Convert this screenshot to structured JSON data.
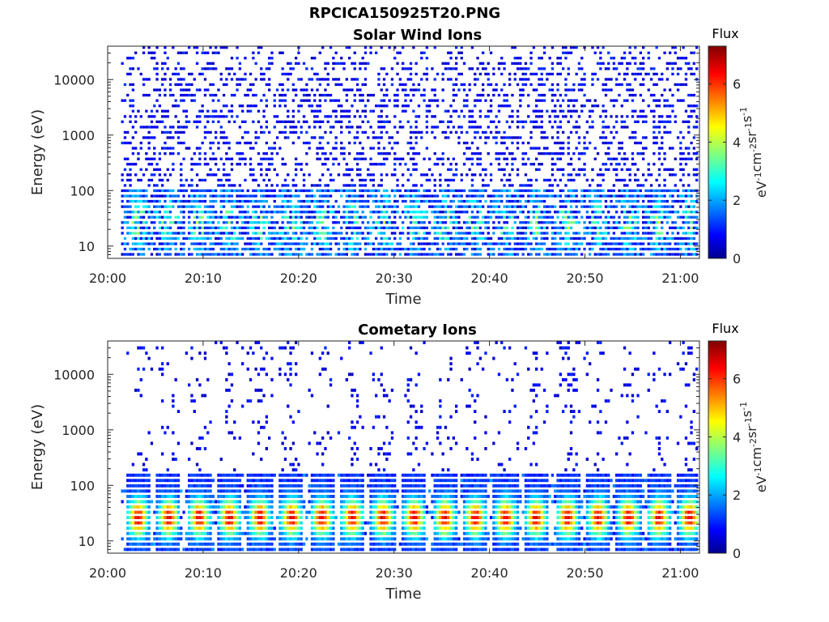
{
  "figure": {
    "title": "RPCICA150925T20.PNG"
  },
  "chart_data": [
    {
      "type": "heatmap",
      "title": "Solar Wind Ions",
      "xlabel": "Time",
      "ylabel": "Energy (eV)",
      "xticks": [
        "20:00",
        "20:10",
        "20:20",
        "20:30",
        "20:40",
        "20:50",
        "21:00"
      ],
      "xlim": [
        "20:00",
        "21:02"
      ],
      "ylim": [
        6,
        40000
      ],
      "yscale": "log",
      "yticks": [
        10,
        100,
        1000,
        10000
      ],
      "ytick_labels": [
        "10",
        "100",
        "1000",
        "10000"
      ],
      "colorbar": {
        "title": "Flux",
        "label": "eV-1cm-2sr-1s-1",
        "range": [
          0,
          7.3
        ],
        "ticks": [
          0,
          2,
          4,
          6
        ],
        "tick_labels": [
          "0",
          "2",
          "4",
          "6"
        ],
        "colormap": "jet"
      },
      "bursts_minutes": [
        3.2,
        6.4,
        9.6,
        12.8,
        16.0,
        19.3,
        22.5,
        25.7,
        28.9,
        32.2,
        35.4,
        38.6,
        41.8,
        45.0,
        48.3,
        51.5,
        54.7,
        57.9,
        61.1
      ],
      "background_level": 0.9,
      "burst_peak_level": 3.6,
      "burst_peak_energy_eV": 25
    },
    {
      "type": "heatmap",
      "title": "Cometary Ions",
      "xlabel": "Time",
      "ylabel": "Energy (eV)",
      "xticks": [
        "20:00",
        "20:10",
        "20:20",
        "20:30",
        "20:40",
        "20:50",
        "21:00"
      ],
      "xlim": [
        "20:00",
        "21:02"
      ],
      "ylim": [
        6,
        40000
      ],
      "yscale": "log",
      "yticks": [
        10,
        100,
        1000,
        10000
      ],
      "ytick_labels": [
        "10",
        "100",
        "1000",
        "10000"
      ],
      "colorbar": {
        "title": "Flux",
        "label": "eV-1cm-2sr-1s-1",
        "range": [
          0,
          7.3
        ],
        "ticks": [
          0,
          2,
          4,
          6
        ],
        "tick_labels": [
          "0",
          "2",
          "4",
          "6"
        ],
        "colormap": "jet"
      },
      "bursts_minutes": [
        3.2,
        6.4,
        9.6,
        12.8,
        16.0,
        19.3,
        22.5,
        25.7,
        28.9,
        32.2,
        35.4,
        38.6,
        41.8,
        45.0,
        48.3,
        51.5,
        54.7,
        57.9,
        61.1
      ],
      "background_level": 0.4,
      "burst_peak_level": 6.3,
      "burst_peak_energy_eV": 25
    }
  ]
}
